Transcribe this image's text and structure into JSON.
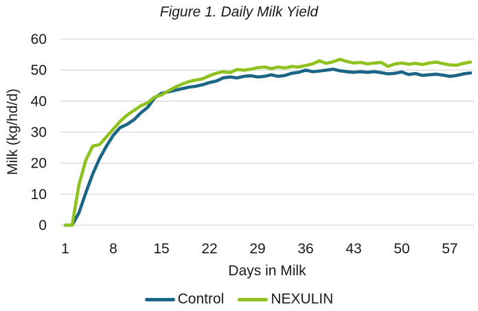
{
  "header": {
    "title_prefix": "Figure 1.",
    "title_rest": "Daily Milk Yield"
  },
  "colors": {
    "control_line": "#1B6586",
    "nexulin_line": "#8FC21E",
    "gridline": "#D9D9D9",
    "text": "#1A1A1A",
    "background": "#FFFFFF"
  },
  "chart_data": {
    "type": "line",
    "title": "Figure 1. Daily Milk Yield",
    "xlabel": "Days in Milk",
    "ylabel": "Milk (kg/hd/d)",
    "xlim": [
      1,
      60
    ],
    "ylim": [
      0,
      60
    ],
    "xticks": [
      1,
      8,
      15,
      22,
      29,
      36,
      43,
      50,
      57
    ],
    "yticks": [
      0,
      10,
      20,
      30,
      40,
      50,
      60
    ],
    "grid": "horizontal-only",
    "legend_position": "bottom-center",
    "x": [
      1,
      2,
      3,
      4,
      5,
      6,
      7,
      8,
      9,
      10,
      11,
      12,
      13,
      14,
      15,
      16,
      17,
      18,
      19,
      20,
      21,
      22,
      23,
      24,
      25,
      26,
      27,
      28,
      29,
      30,
      31,
      32,
      33,
      34,
      35,
      36,
      37,
      38,
      39,
      40,
      41,
      42,
      43,
      44,
      45,
      46,
      47,
      48,
      49,
      50,
      51,
      52,
      53,
      54,
      55,
      56,
      57,
      58,
      59,
      60
    ],
    "series": [
      {
        "name": "Control",
        "color": "#1B6586",
        "values": [
          0,
          0,
          4,
          10.5,
          16.5,
          21.5,
          25.5,
          29,
          31.5,
          32.5,
          34,
          36.2,
          38,
          41,
          42.5,
          43,
          43.5,
          44,
          44.5,
          44.8,
          45.3,
          46,
          46.5,
          47.5,
          47.8,
          47.5,
          48,
          48.2,
          47.8,
          48,
          48.5,
          48,
          48.3,
          49,
          49.3,
          50,
          49.5,
          49.7,
          50,
          50.3,
          49.8,
          49.5,
          49.3,
          49.5,
          49.3,
          49.5,
          49.2,
          48.8,
          49,
          49.4,
          48.6,
          48.9,
          48.3,
          48.5,
          48.7,
          48.4,
          48,
          48.3,
          48.8,
          49.1
        ]
      },
      {
        "name": "NEXULIN",
        "color": "#8FC21E",
        "values": [
          0,
          0,
          13,
          21,
          25.5,
          26,
          28.5,
          31,
          33.5,
          35.5,
          37,
          38.5,
          39.5,
          41.3,
          42,
          43.3,
          44.5,
          45.5,
          46.3,
          46.8,
          47.2,
          48.2,
          49,
          49.5,
          49.2,
          50.2,
          50,
          50.3,
          50.8,
          51,
          50.5,
          51,
          50.7,
          51.2,
          51,
          51.5,
          52,
          53,
          52.2,
          52.7,
          53.5,
          52.8,
          52.3,
          52.5,
          52,
          52.3,
          52.5,
          51.2,
          52,
          52.3,
          51.9,
          52.2,
          51.8,
          52.3,
          52.6,
          52.1,
          51.7,
          51.6,
          52.2,
          52.6
        ]
      }
    ]
  }
}
